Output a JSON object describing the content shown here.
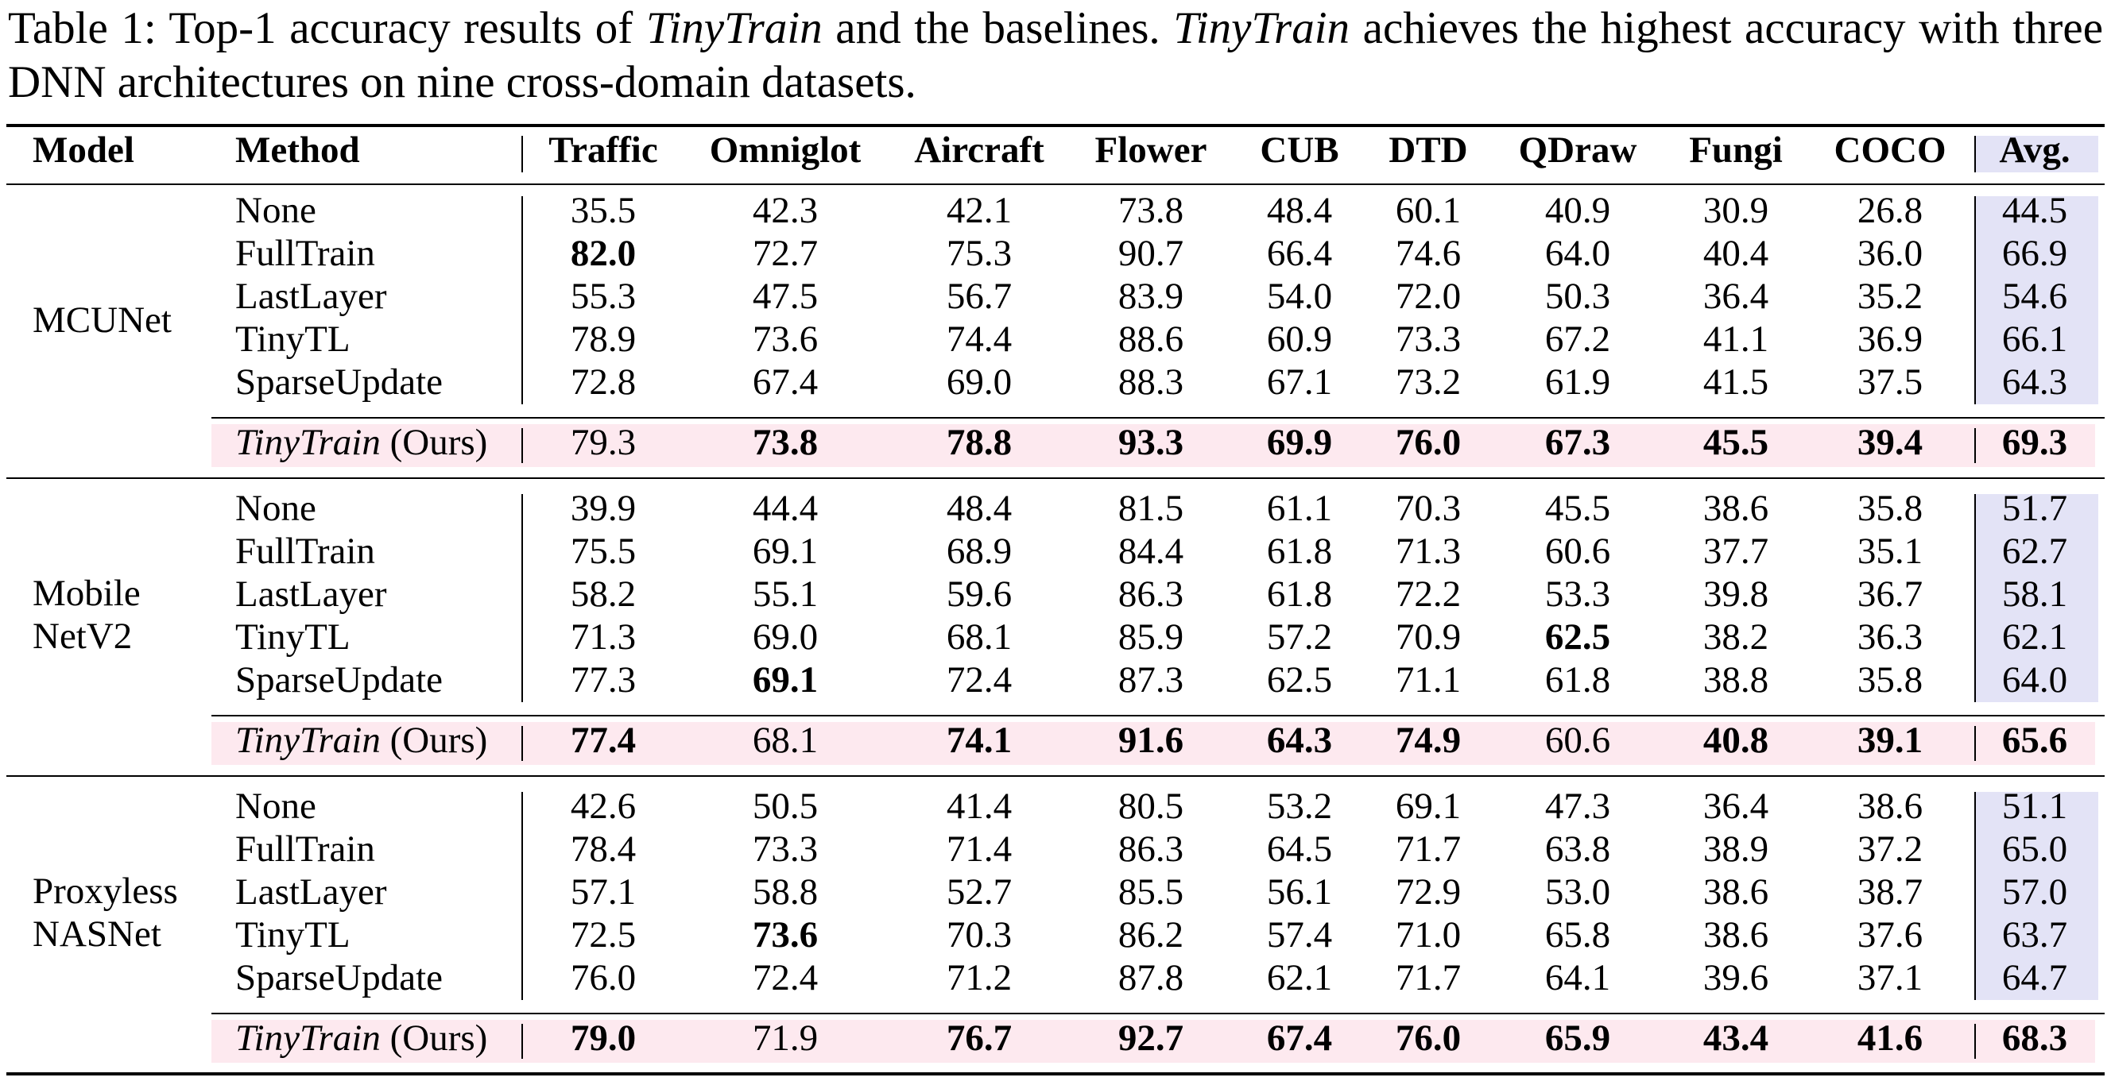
{
  "caption": [
    "Table 1: Top-1 accuracy results of ",
    "TinyTrain",
    " and the baselines. ",
    "TinyTrain",
    " achieves the highest accuracy with three DNN architectures on nine cross-domain datasets."
  ],
  "table": {
    "columns": [
      "Model",
      "Method",
      "Traffic",
      "Omniglot",
      "Aircraft",
      "Flower",
      "CUB",
      "DTD",
      "QDraw",
      "Fungi",
      "COCO",
      "Avg."
    ],
    "groups": [
      {
        "model": [
          "MCUNet"
        ],
        "rows": [
          {
            "method": "None",
            "values": [
              "35.5",
              "42.3",
              "42.1",
              "73.8",
              "48.4",
              "60.1",
              "40.9",
              "30.9",
              "26.8",
              "44.5"
            ],
            "bold": []
          },
          {
            "method": "FullTrain",
            "values": [
              "82.0",
              "72.7",
              "75.3",
              "90.7",
              "66.4",
              "74.6",
              "64.0",
              "40.4",
              "36.0",
              "66.9"
            ],
            "bold": [
              0
            ]
          },
          {
            "method": "LastLayer",
            "values": [
              "55.3",
              "47.5",
              "56.7",
              "83.9",
              "54.0",
              "72.0",
              "50.3",
              "36.4",
              "35.2",
              "54.6"
            ],
            "bold": []
          },
          {
            "method": "TinyTL",
            "values": [
              "78.9",
              "73.6",
              "74.4",
              "88.6",
              "60.9",
              "73.3",
              "67.2",
              "41.1",
              "36.9",
              "66.1"
            ],
            "bold": []
          },
          {
            "method": "SparseUpdate",
            "values": [
              "72.8",
              "67.4",
              "69.0",
              "88.3",
              "67.1",
              "73.2",
              "61.9",
              "41.5",
              "37.5",
              "64.3"
            ],
            "bold": []
          }
        ],
        "ours": {
          "method": [
            "TinyTrain",
            "(Ours)"
          ],
          "values": [
            "79.3",
            "73.8",
            "78.8",
            "93.3",
            "69.9",
            "76.0",
            "67.3",
            "45.5",
            "39.4",
            "69.3"
          ],
          "bold": [
            1,
            2,
            3,
            4,
            5,
            6,
            7,
            8,
            9
          ]
        }
      },
      {
        "model": [
          "Mobile",
          "NetV2"
        ],
        "rows": [
          {
            "method": "None",
            "values": [
              "39.9",
              "44.4",
              "48.4",
              "81.5",
              "61.1",
              "70.3",
              "45.5",
              "38.6",
              "35.8",
              "51.7"
            ],
            "bold": []
          },
          {
            "method": "FullTrain",
            "values": [
              "75.5",
              "69.1",
              "68.9",
              "84.4",
              "61.8",
              "71.3",
              "60.6",
              "37.7",
              "35.1",
              "62.7"
            ],
            "bold": []
          },
          {
            "method": "LastLayer",
            "values": [
              "58.2",
              "55.1",
              "59.6",
              "86.3",
              "61.8",
              "72.2",
              "53.3",
              "39.8",
              "36.7",
              "58.1"
            ],
            "bold": []
          },
          {
            "method": "TinyTL",
            "values": [
              "71.3",
              "69.0",
              "68.1",
              "85.9",
              "57.2",
              "70.9",
              "62.5",
              "38.2",
              "36.3",
              "62.1"
            ],
            "bold": [
              6
            ]
          },
          {
            "method": "SparseUpdate",
            "values": [
              "77.3",
              "69.1",
              "72.4",
              "87.3",
              "62.5",
              "71.1",
              "61.8",
              "38.8",
              "35.8",
              "64.0"
            ],
            "bold": [
              1
            ]
          }
        ],
        "ours": {
          "method": [
            "TinyTrain",
            "(Ours)"
          ],
          "values": [
            "77.4",
            "68.1",
            "74.1",
            "91.6",
            "64.3",
            "74.9",
            "60.6",
            "40.8",
            "39.1",
            "65.6"
          ],
          "bold": [
            0,
            2,
            3,
            4,
            5,
            7,
            8,
            9
          ]
        }
      },
      {
        "model": [
          "Proxyless",
          "NASNet"
        ],
        "rows": [
          {
            "method": "None",
            "values": [
              "42.6",
              "50.5",
              "41.4",
              "80.5",
              "53.2",
              "69.1",
              "47.3",
              "36.4",
              "38.6",
              "51.1"
            ],
            "bold": []
          },
          {
            "method": "FullTrain",
            "values": [
              "78.4",
              "73.3",
              "71.4",
              "86.3",
              "64.5",
              "71.7",
              "63.8",
              "38.9",
              "37.2",
              "65.0"
            ],
            "bold": []
          },
          {
            "method": "LastLayer",
            "values": [
              "57.1",
              "58.8",
              "52.7",
              "85.5",
              "56.1",
              "72.9",
              "53.0",
              "38.6",
              "38.7",
              "57.0"
            ],
            "bold": []
          },
          {
            "method": "TinyTL",
            "values": [
              "72.5",
              "73.6",
              "70.3",
              "86.2",
              "57.4",
              "71.0",
              "65.8",
              "38.6",
              "37.6",
              "63.7"
            ],
            "bold": [
              1
            ]
          },
          {
            "method": "SparseUpdate",
            "values": [
              "76.0",
              "72.4",
              "71.2",
              "87.8",
              "62.1",
              "71.7",
              "64.1",
              "39.6",
              "37.1",
              "64.7"
            ],
            "bold": []
          }
        ],
        "ours": {
          "method": [
            "TinyTrain",
            "(Ours)"
          ],
          "values": [
            "79.0",
            "71.9",
            "76.7",
            "92.7",
            "67.4",
            "76.0",
            "65.9",
            "43.4",
            "41.6",
            "68.3"
          ],
          "bold": [
            0,
            2,
            3,
            4,
            5,
            6,
            7,
            8,
            9
          ]
        }
      }
    ]
  }
}
